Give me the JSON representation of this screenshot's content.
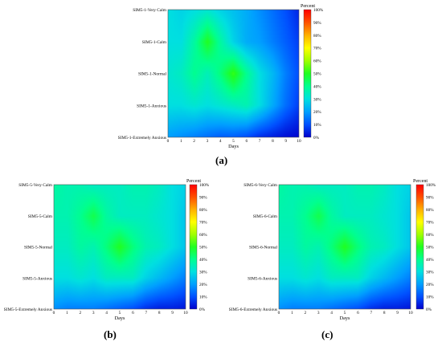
{
  "figure_labels": [
    "(a)",
    "(b)",
    "(c)"
  ],
  "chart_data": [
    {
      "type": "heatmap",
      "xlabel": "Days",
      "x_ticks": [
        0,
        1,
        2,
        3,
        4,
        5,
        6,
        7,
        8,
        9,
        10
      ],
      "xlim": [
        0,
        10
      ],
      "y_categories": [
        "SIM5-1-Very Calm",
        "SIM5-1-Calm",
        "SIM5-1-Normal",
        "SIM5-1-Anxious",
        "SIM5-1-Extremely Anxious"
      ],
      "colorbar_title": "Percent",
      "colorbar_ticks": [
        "0%",
        "10%",
        "20%",
        "30%",
        "40%",
        "50%",
        "60%",
        "70%",
        "80%",
        "90%",
        "100%"
      ],
      "colorscale": [
        "#0000cc",
        "#0050ff",
        "#00a0ff",
        "#00e0e0",
        "#00ff90",
        "#20ff20",
        "#a0ff00",
        "#ffff00",
        "#ffb000",
        "#ff5000",
        "#ff0000"
      ],
      "grid": false,
      "values": [
        [
          30,
          28,
          30,
          32,
          28,
          25,
          22,
          18,
          14,
          10,
          5
        ],
        [
          30,
          30,
          38,
          50,
          38,
          28,
          22,
          20,
          16,
          12,
          8
        ],
        [
          32,
          34,
          40,
          35,
          42,
          52,
          40,
          30,
          24,
          16,
          10
        ],
        [
          30,
          30,
          32,
          30,
          32,
          34,
          36,
          30,
          22,
          14,
          8
        ],
        [
          20,
          18,
          16,
          14,
          12,
          12,
          10,
          6,
          4,
          2,
          1
        ]
      ]
    },
    {
      "type": "heatmap",
      "xlabel": "Days",
      "x_ticks": [
        0,
        1,
        2,
        3,
        4,
        5,
        6,
        7,
        8,
        9,
        10
      ],
      "xlim": [
        0,
        10
      ],
      "y_categories": [
        "SIM5-5-Very Calm",
        "SIM5-5-Calm",
        "SIM5-5-Normal",
        "SIM5-5-Anxious",
        "SIM5-5-Extremely Anxious"
      ],
      "colorbar_title": "Percent",
      "colorbar_ticks": [
        "0%",
        "10%",
        "20%",
        "30%",
        "40%",
        "50%",
        "60%",
        "70%",
        "80%",
        "90%",
        "100%"
      ],
      "colorscale": [
        "#0000cc",
        "#0050ff",
        "#00a0ff",
        "#00e0e0",
        "#00ff90",
        "#20ff20",
        "#a0ff00",
        "#ffff00",
        "#ffb000",
        "#ff5000",
        "#ff0000"
      ],
      "grid": false,
      "values": [
        [
          38,
          36,
          36,
          34,
          34,
          34,
          36,
          36,
          34,
          30,
          28
        ],
        [
          36,
          36,
          40,
          46,
          38,
          34,
          34,
          34,
          32,
          30,
          26
        ],
        [
          34,
          34,
          38,
          36,
          42,
          50,
          42,
          36,
          34,
          30,
          26
        ],
        [
          30,
          30,
          32,
          30,
          34,
          34,
          34,
          28,
          24,
          20,
          16
        ],
        [
          18,
          16,
          16,
          16,
          14,
          12,
          10,
          6,
          4,
          4,
          3
        ]
      ]
    },
    {
      "type": "heatmap",
      "xlabel": "Days",
      "x_ticks": [
        0,
        1,
        2,
        3,
        4,
        5,
        6,
        7,
        8,
        9,
        10
      ],
      "xlim": [
        0,
        10
      ],
      "y_categories": [
        "SIM5-6-Very Calm",
        "SIM5-6-Calm",
        "SIM5-6-Normal",
        "SIM5-6-Anxious",
        "SIM5-6-Extremely Anxious"
      ],
      "colorbar_title": "Percent",
      "colorbar_ticks": [
        "0%",
        "10%",
        "20%",
        "30%",
        "40%",
        "50%",
        "60%",
        "70%",
        "80%",
        "90%",
        "100%"
      ],
      "colorscale": [
        "#0000cc",
        "#0050ff",
        "#00a0ff",
        "#00e0e0",
        "#00ff90",
        "#20ff20",
        "#a0ff00",
        "#ffff00",
        "#ffb000",
        "#ff5000",
        "#ff0000"
      ],
      "grid": false,
      "values": [
        [
          38,
          36,
          36,
          34,
          34,
          34,
          36,
          36,
          34,
          30,
          28
        ],
        [
          36,
          36,
          40,
          46,
          38,
          34,
          34,
          34,
          32,
          30,
          26
        ],
        [
          34,
          34,
          38,
          36,
          42,
          50,
          42,
          36,
          34,
          30,
          26
        ],
        [
          30,
          30,
          32,
          30,
          34,
          34,
          34,
          28,
          24,
          20,
          16
        ],
        [
          18,
          16,
          16,
          16,
          14,
          12,
          10,
          6,
          4,
          4,
          3
        ]
      ]
    }
  ]
}
